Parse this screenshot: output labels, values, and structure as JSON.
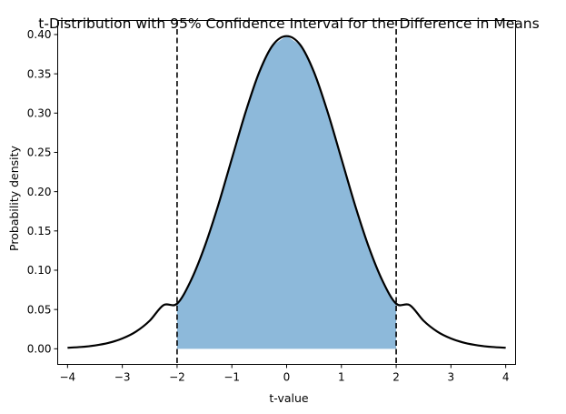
{
  "chart_data": {
    "type": "line",
    "title": "t-Distribution with 95% Confidence Interval for the Difference in Means",
    "xlabel": "t-value",
    "ylabel": "Probability density",
    "xlim": [
      -4.18,
      4.18
    ],
    "ylim": [
      -0.0199,
      0.4179
    ],
    "xticks": [
      -4,
      -3,
      -2,
      -1,
      0,
      1,
      2,
      3,
      4
    ],
    "xtick_labels": [
      "−4",
      "−3",
      "−2",
      "−1",
      "0",
      "1",
      "2",
      "3",
      "4"
    ],
    "yticks": [
      0.0,
      0.05,
      0.1,
      0.15,
      0.2,
      0.25,
      0.3,
      0.35,
      0.4
    ],
    "ytick_labels": [
      "0.00",
      "0.05",
      "0.10",
      "0.15",
      "0.20",
      "0.25",
      "0.30",
      "0.35",
      "0.40"
    ],
    "grid": false,
    "series": [
      {
        "kind": "density-curve",
        "color": "#000000",
        "x": [
          -4.0,
          -3.75,
          -3.5,
          -3.25,
          -3.0,
          -2.75,
          -2.5,
          -2.25,
          -2.0,
          -1.75,
          -1.5,
          -1.25,
          -1.0,
          -0.75,
          -0.5,
          -0.25,
          0.0,
          0.25,
          0.5,
          0.75,
          1.0,
          1.25,
          1.5,
          1.75,
          2.0,
          2.25,
          2.5,
          2.75,
          3.0,
          3.25,
          3.5,
          3.75,
          4.0
        ],
        "y": [
          0.0013,
          0.0023,
          0.0042,
          0.0075,
          0.0131,
          0.0219,
          0.0357,
          0.0555,
          0.0574,
          0.0866,
          0.1295,
          0.1826,
          0.242,
          0.3011,
          0.3521,
          0.3867,
          0.398,
          0.3867,
          0.3521,
          0.3011,
          0.242,
          0.1826,
          0.1295,
          0.0866,
          0.0574,
          0.0555,
          0.0357,
          0.0219,
          0.0131,
          0.0075,
          0.0042,
          0.0023,
          0.0013
        ]
      }
    ],
    "shaded_region": {
      "x_from": -2.0,
      "x_to": 2.0,
      "color": "#8db9da"
    },
    "critical_lines": [
      {
        "x": -2.0,
        "style": "dashed"
      },
      {
        "x": 2.0,
        "style": "dashed"
      }
    ]
  }
}
